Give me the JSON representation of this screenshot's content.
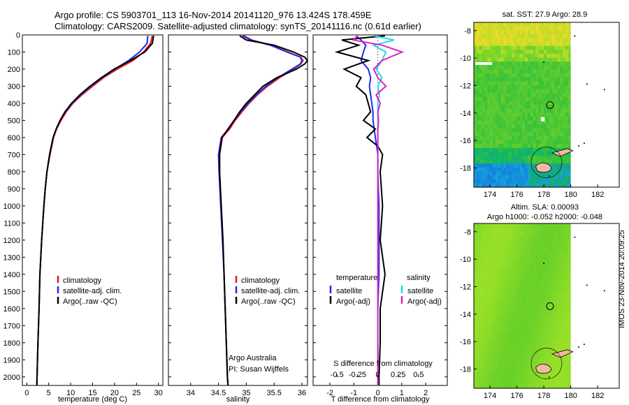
{
  "header": {
    "line1": "Argo profile: CS 5903701_113 16-Nov-2014 20141120_976 13.424S 178.459E",
    "line2": "Climatology: CARS2009. Satellite-adjusted climatology: synTS_20141116.nc (0.61d earlier)"
  },
  "map_titles": {
    "sst": "sat. SST: 27.9 Argo: 28.9",
    "sla_line1": "Altim. SLA: 0.00093",
    "sla_line2": "Argo h1000: -0.052 h2000: -0.048"
  },
  "credit": {
    "line1": "Argo Australia",
    "line2": "PI: Susan Wijffels"
  },
  "side_label": "IMOS 23-Nov-2014 20:09:25",
  "colors": {
    "climatology": "#e8141e",
    "satellite": "#1f2be6",
    "argo": "#000000",
    "sat_salinity": "#22d8e8",
    "argo_salinity": "#e020c8"
  },
  "chart_data": [
    {
      "type": "line",
      "name": "temperature-profile",
      "xlabel": "temperature (deg C)",
      "xlim": [
        -1,
        31
      ],
      "xticks": [
        "0",
        "5",
        "10",
        "15",
        "20",
        "25",
        "30"
      ],
      "ylim": [
        2050,
        0
      ],
      "yticks": [
        "0",
        "100",
        "200",
        "300",
        "400",
        "500",
        "600",
        "700",
        "800",
        "900",
        "1000",
        "1100",
        "1200",
        "1300",
        "1400",
        "1500",
        "1600",
        "1700",
        "1800",
        "1900",
        "2000"
      ],
      "depth": [
        5,
        50,
        100,
        150,
        200,
        250,
        300,
        350,
        400,
        450,
        500,
        550,
        600,
        700,
        800,
        900,
        1000,
        1200,
        1400,
        1600,
        1800,
        2000,
        2050
      ],
      "series": [
        {
          "name": "climatology",
          "legend": "climatology",
          "values": [
            28.6,
            28.2,
            26.6,
            24.2,
            20.6,
            17.5,
            15.0,
            12.6,
            10.5,
            9.0,
            7.8,
            6.8,
            6.1,
            5.3,
            4.6,
            4.2,
            3.9,
            3.4,
            3.0,
            2.8,
            2.55,
            2.35,
            2.3
          ]
        },
        {
          "name": "satellite",
          "legend": "satellite-adj. clim.",
          "values": [
            27.6,
            27.4,
            25.7,
            23.2,
            20.1,
            17.2,
            14.6,
            12.3,
            10.3,
            8.8,
            7.6,
            6.7,
            6.0,
            5.2,
            4.6,
            4.2,
            3.9,
            3.4,
            3.0,
            2.8,
            2.55,
            2.35,
            2.3
          ]
        },
        {
          "name": "argo",
          "legend": "Argo(..raw -QC)",
          "values": [
            28.9,
            28.6,
            26.9,
            23.6,
            19.9,
            17.0,
            14.4,
            12.1,
            10.2,
            8.7,
            7.6,
            6.7,
            6.0,
            5.2,
            4.6,
            4.2,
            3.9,
            3.4,
            3.0,
            2.8,
            2.55,
            2.35,
            2.3
          ]
        }
      ]
    },
    {
      "type": "line",
      "name": "salinity-profile",
      "xlabel": "salinity",
      "xlim": [
        33.6,
        36.1
      ],
      "xticks": [
        "34",
        "34.5",
        "35",
        "35.5",
        "36"
      ],
      "ylim": [
        2050,
        0
      ],
      "depth": [
        5,
        30,
        60,
        100,
        130,
        150,
        170,
        200,
        250,
        300,
        350,
        400,
        450,
        500,
        550,
        600,
        700,
        800,
        1000,
        1200,
        1400,
        1600,
        1800,
        2000,
        2050
      ],
      "series": [
        {
          "name": "climatology",
          "legend": "climatology",
          "values": [
            34.95,
            35.1,
            35.45,
            35.75,
            35.98,
            36.02,
            35.98,
            35.85,
            35.6,
            35.38,
            35.2,
            35.05,
            34.92,
            34.8,
            34.7,
            34.57,
            34.52,
            34.52,
            34.55,
            34.58,
            34.6,
            34.62,
            34.64,
            34.66,
            34.67
          ]
        },
        {
          "name": "satellite",
          "legend": "satellite-adj. clim.",
          "values": [
            34.93,
            35.08,
            35.43,
            35.73,
            35.97,
            36.0,
            35.97,
            35.82,
            35.57,
            35.35,
            35.18,
            35.03,
            34.9,
            34.78,
            34.68,
            34.55,
            34.5,
            34.51,
            34.54,
            34.57,
            34.6,
            34.62,
            34.64,
            34.66,
            34.67
          ]
        },
        {
          "name": "argo",
          "legend": "Argo(..raw -QC)",
          "values": [
            34.88,
            35.0,
            35.5,
            35.85,
            36.05,
            36.1,
            36.05,
            35.9,
            35.55,
            35.3,
            35.15,
            35.0,
            34.88,
            34.78,
            34.67,
            34.56,
            34.52,
            34.52,
            34.55,
            34.58,
            34.6,
            34.62,
            34.64,
            34.66,
            34.67
          ]
        }
      ],
      "legend_labels": [
        "climatology",
        "satellite-adj. clim.",
        "Argo(..raw -QC)"
      ]
    },
    {
      "type": "line",
      "name": "difference-profile",
      "xlabel": "T difference from climatology",
      "xlim": [
        -2.7,
        2.9
      ],
      "xticks": [
        "-2",
        "-1",
        "0",
        "1",
        "2"
      ],
      "top_axis_label": "S difference from climatology",
      "top_ticks": [
        "-0.5",
        "-0.25",
        "0",
        "0.25",
        "0.5"
      ],
      "ylim": [
        2050,
        0
      ],
      "legend": {
        "temp_title": "temperature",
        "sal_title": "salinity",
        "labels": [
          "satellite",
          "Argo(-adj)",
          "satellite",
          "Argo(-adj)"
        ]
      },
      "depth": [
        5,
        30,
        60,
        100,
        150,
        200,
        250,
        300,
        350,
        400,
        450,
        500,
        550,
        600,
        650,
        700,
        800,
        1000,
        1200,
        1400,
        1600,
        1800,
        2000,
        2050
      ],
      "series": [
        {
          "name": "T satellite",
          "values": [
            -0.9,
            -0.7,
            -0.5,
            -0.6,
            -0.7,
            -0.4,
            -0.3,
            -0.35,
            -0.3,
            -0.25,
            -0.2,
            -0.2,
            -0.15,
            -0.1,
            -0.05,
            0.0,
            0.0,
            0.05,
            0.05,
            0.05,
            0.0,
            0.0,
            0.0,
            0.0
          ]
        },
        {
          "name": "T argo",
          "values": [
            0.3,
            -1.5,
            -0.8,
            -1.7,
            -0.4,
            -1.4,
            -0.7,
            -0.9,
            -0.5,
            -0.4,
            -0.3,
            -0.6,
            -0.1,
            -0.45,
            0.0,
            0.2,
            0.1,
            0.2,
            0.1,
            0.3,
            0.1,
            0.1,
            0.05,
            0.05
          ]
        },
        {
          "name": "S satellite",
          "values": [
            -0.05,
            0.2,
            -0.05,
            0.1,
            0.05,
            -0.02,
            0.05,
            0.0,
            0.02,
            0.0,
            0.0,
            0.0,
            0.0,
            0.0,
            0.0,
            0.0,
            0.0,
            0.0,
            0.0,
            0.0,
            0.0,
            0.0,
            0.0,
            0.0
          ]
        },
        {
          "name": "S argo",
          "values": [
            -0.25,
            -0.3,
            0.05,
            0.3,
            0.05,
            -0.05,
            0.0,
            0.1,
            -0.02,
            0.03,
            0.0,
            0.01,
            0.0,
            0.0,
            0.0,
            0.0,
            0.0,
            0.0,
            0.0,
            0.0,
            0.0,
            0.0,
            0.0,
            0.0
          ]
        }
      ]
    },
    {
      "type": "heatmap",
      "name": "sst-map",
      "xticks": [
        "174",
        "176",
        "178",
        "180",
        "182"
      ],
      "yticks": [
        "-8",
        "-10",
        "-12",
        "-14",
        "-16",
        "-18"
      ],
      "xlim": [
        172.8,
        183.6
      ],
      "ylim": [
        -19.4,
        -7.4
      ],
      "argo_position": {
        "lon": 178.459,
        "lat": -13.424
      }
    },
    {
      "type": "heatmap",
      "name": "sla-map",
      "xticks": [
        "174",
        "176",
        "178",
        "180",
        "182"
      ],
      "yticks": [
        "-8",
        "-10",
        "-12",
        "-14",
        "-16",
        "-18"
      ],
      "xlim": [
        172.8,
        183.6
      ],
      "ylim": [
        -19.4,
        -7.4
      ],
      "argo_position": {
        "lon": 178.459,
        "lat": -13.424
      }
    }
  ]
}
